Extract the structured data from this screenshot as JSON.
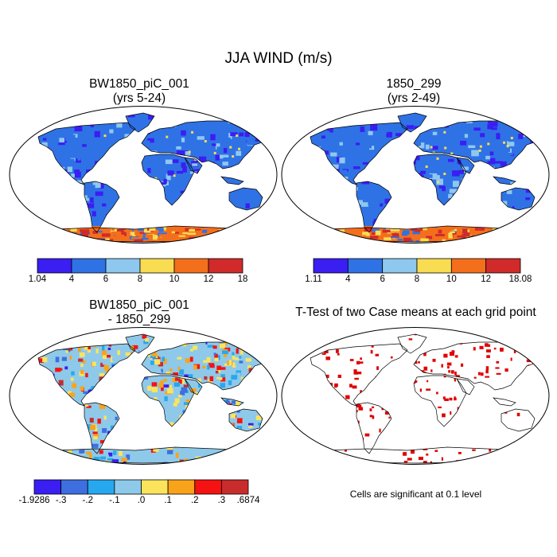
{
  "figure": {
    "main_title": "JJA WIND (m/s)",
    "panels": [
      {
        "id": "case1",
        "title_line1": "BW1850_piC_001",
        "title_line2": "(yrs 5-24)",
        "colorbar": {
          "labels": [
            "1.04",
            "4",
            "6",
            "8",
            "10",
            "12",
            "18"
          ],
          "colors": [
            "#3a1ef2",
            "#2f72e6",
            "#8fc8ee",
            "#f8dc52",
            "#f46f1c",
            "#d02a2a"
          ]
        }
      },
      {
        "id": "case2",
        "title_line1": "1850_299",
        "title_line2": "(yrs 2-49)",
        "colorbar": {
          "labels": [
            "1.11",
            "4",
            "6",
            "8",
            "10",
            "12",
            "18.08"
          ],
          "colors": [
            "#3a1ef2",
            "#2f72e6",
            "#8fc8ee",
            "#f8dc52",
            "#f46f1c",
            "#d02a2a"
          ]
        }
      },
      {
        "id": "diff",
        "title_line1": "BW1850_piC_001",
        "title_line2": "- 1850_299",
        "colorbar": {
          "labels": [
            "-1.9286",
            "-.3",
            "-.2",
            "-.1",
            ".0",
            ".1",
            ".2",
            ".3",
            ".6874"
          ],
          "colors": [
            "#3a1ef2",
            "#3e6fe0",
            "#27a8ee",
            "#8ec9ea",
            "#fbe45c",
            "#f9a31a",
            "#f51212",
            "#c92c2c"
          ]
        }
      },
      {
        "id": "ttest",
        "title_line1": "T-Test of two Case means at each grid point",
        "note": "Cells are significant at 0.1 level",
        "significance_color": "#e00000"
      }
    ]
  }
}
